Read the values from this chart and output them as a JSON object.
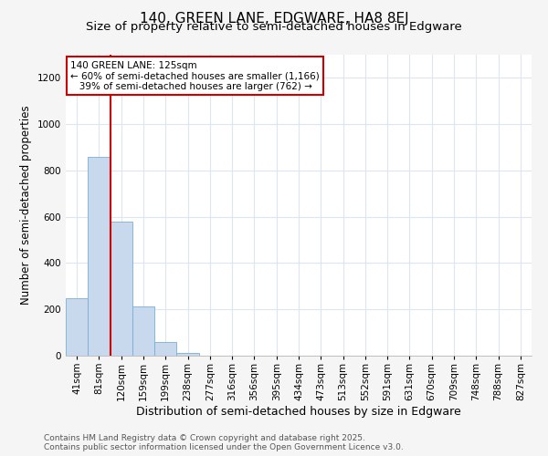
{
  "title": "140, GREEN LANE, EDGWARE, HA8 8EJ",
  "subtitle": "Size of property relative to semi-detached houses in Edgware",
  "xlabel": "Distribution of semi-detached houses by size in Edgware",
  "ylabel": "Number of semi-detached properties",
  "categories": [
    "41sqm",
    "81sqm",
    "120sqm",
    "159sqm",
    "199sqm",
    "238sqm",
    "277sqm",
    "316sqm",
    "356sqm",
    "395sqm",
    "434sqm",
    "473sqm",
    "513sqm",
    "552sqm",
    "591sqm",
    "631sqm",
    "670sqm",
    "709sqm",
    "748sqm",
    "788sqm",
    "827sqm"
  ],
  "values": [
    247,
    858,
    578,
    211,
    60,
    12,
    0,
    0,
    0,
    0,
    0,
    0,
    0,
    0,
    0,
    0,
    0,
    0,
    0,
    0,
    0
  ],
  "bar_color": "#c8d9ee",
  "bar_edge_color": "#7aaed4",
  "vline_color": "#cc0000",
  "vline_x_index": 2,
  "annotation_text": "140 GREEN LANE: 125sqm\n← 60% of semi-detached houses are smaller (1,166)\n   39% of semi-detached houses are larger (762) →",
  "annotation_box_facecolor": "#ffffff",
  "annotation_box_edgecolor": "#cc0000",
  "ylim": [
    0,
    1300
  ],
  "yticks": [
    0,
    200,
    400,
    600,
    800,
    1000,
    1200
  ],
  "plot_bg_color": "#ffffff",
  "fig_bg_color": "#f5f5f5",
  "grid_color": "#dde6f0",
  "title_fontsize": 11,
  "subtitle_fontsize": 9.5,
  "xlabel_fontsize": 9,
  "ylabel_fontsize": 8.5,
  "tick_fontsize": 7.5,
  "annot_fontsize": 7.5,
  "footer_fontsize": 6.5,
  "footer_line1": "Contains HM Land Registry data © Crown copyright and database right 2025.",
  "footer_line2": "Contains public sector information licensed under the Open Government Licence v3.0."
}
